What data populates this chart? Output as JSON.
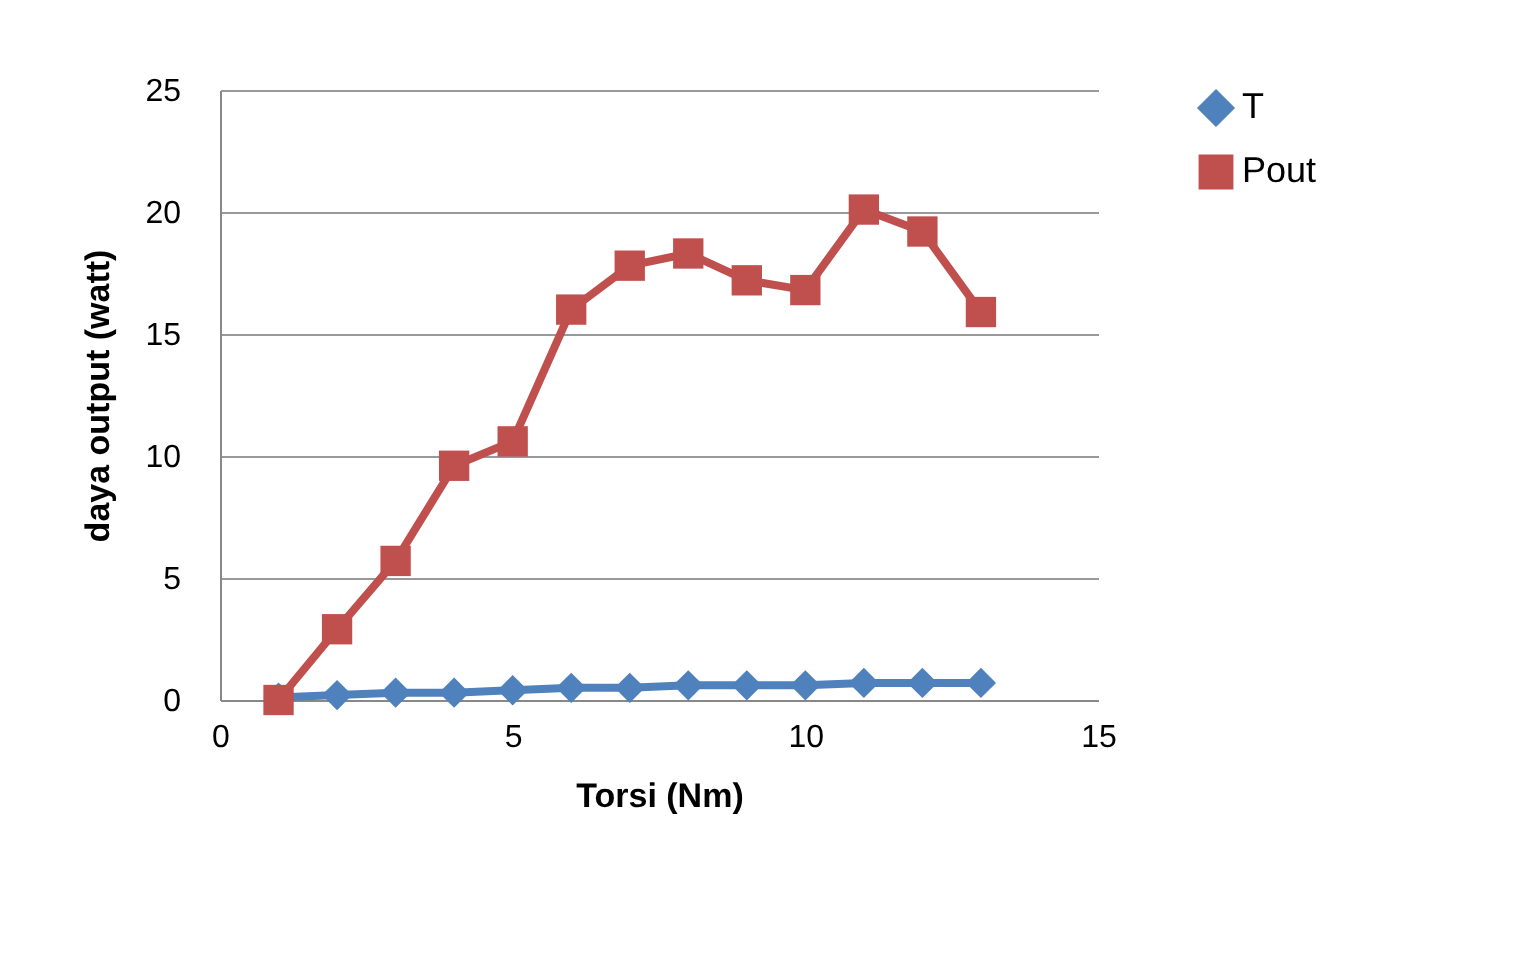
{
  "chart_data": {
    "type": "line",
    "xlabel": "Torsi (Nm)",
    "ylabel": "daya output (watt)",
    "x": [
      1,
      2,
      3,
      4,
      5,
      6,
      7,
      8,
      9,
      10,
      11,
      12,
      13
    ],
    "series": [
      {
        "name": "T",
        "color": "#4f81bd",
        "marker": "diamond",
        "values": [
          0.1,
          0.2,
          0.3,
          0.3,
          0.4,
          0.5,
          0.5,
          0.6,
          0.6,
          0.6,
          0.7,
          0.7,
          0.7
        ]
      },
      {
        "name": "Pout",
        "color": "#c0504d",
        "marker": "square",
        "values": [
          0,
          2.9,
          5.7,
          9.6,
          10.6,
          16.0,
          17.8,
          18.3,
          17.2,
          16.8,
          20.1,
          19.2,
          15.9
        ]
      }
    ],
    "xlim": [
      0,
      15
    ],
    "xticks": [
      0,
      5,
      10,
      15
    ],
    "ylim": [
      0,
      25
    ],
    "yticks": [
      0,
      5,
      10,
      15,
      20,
      25
    ],
    "grid": "y",
    "legend": "right",
    "line_style": "solid"
  }
}
